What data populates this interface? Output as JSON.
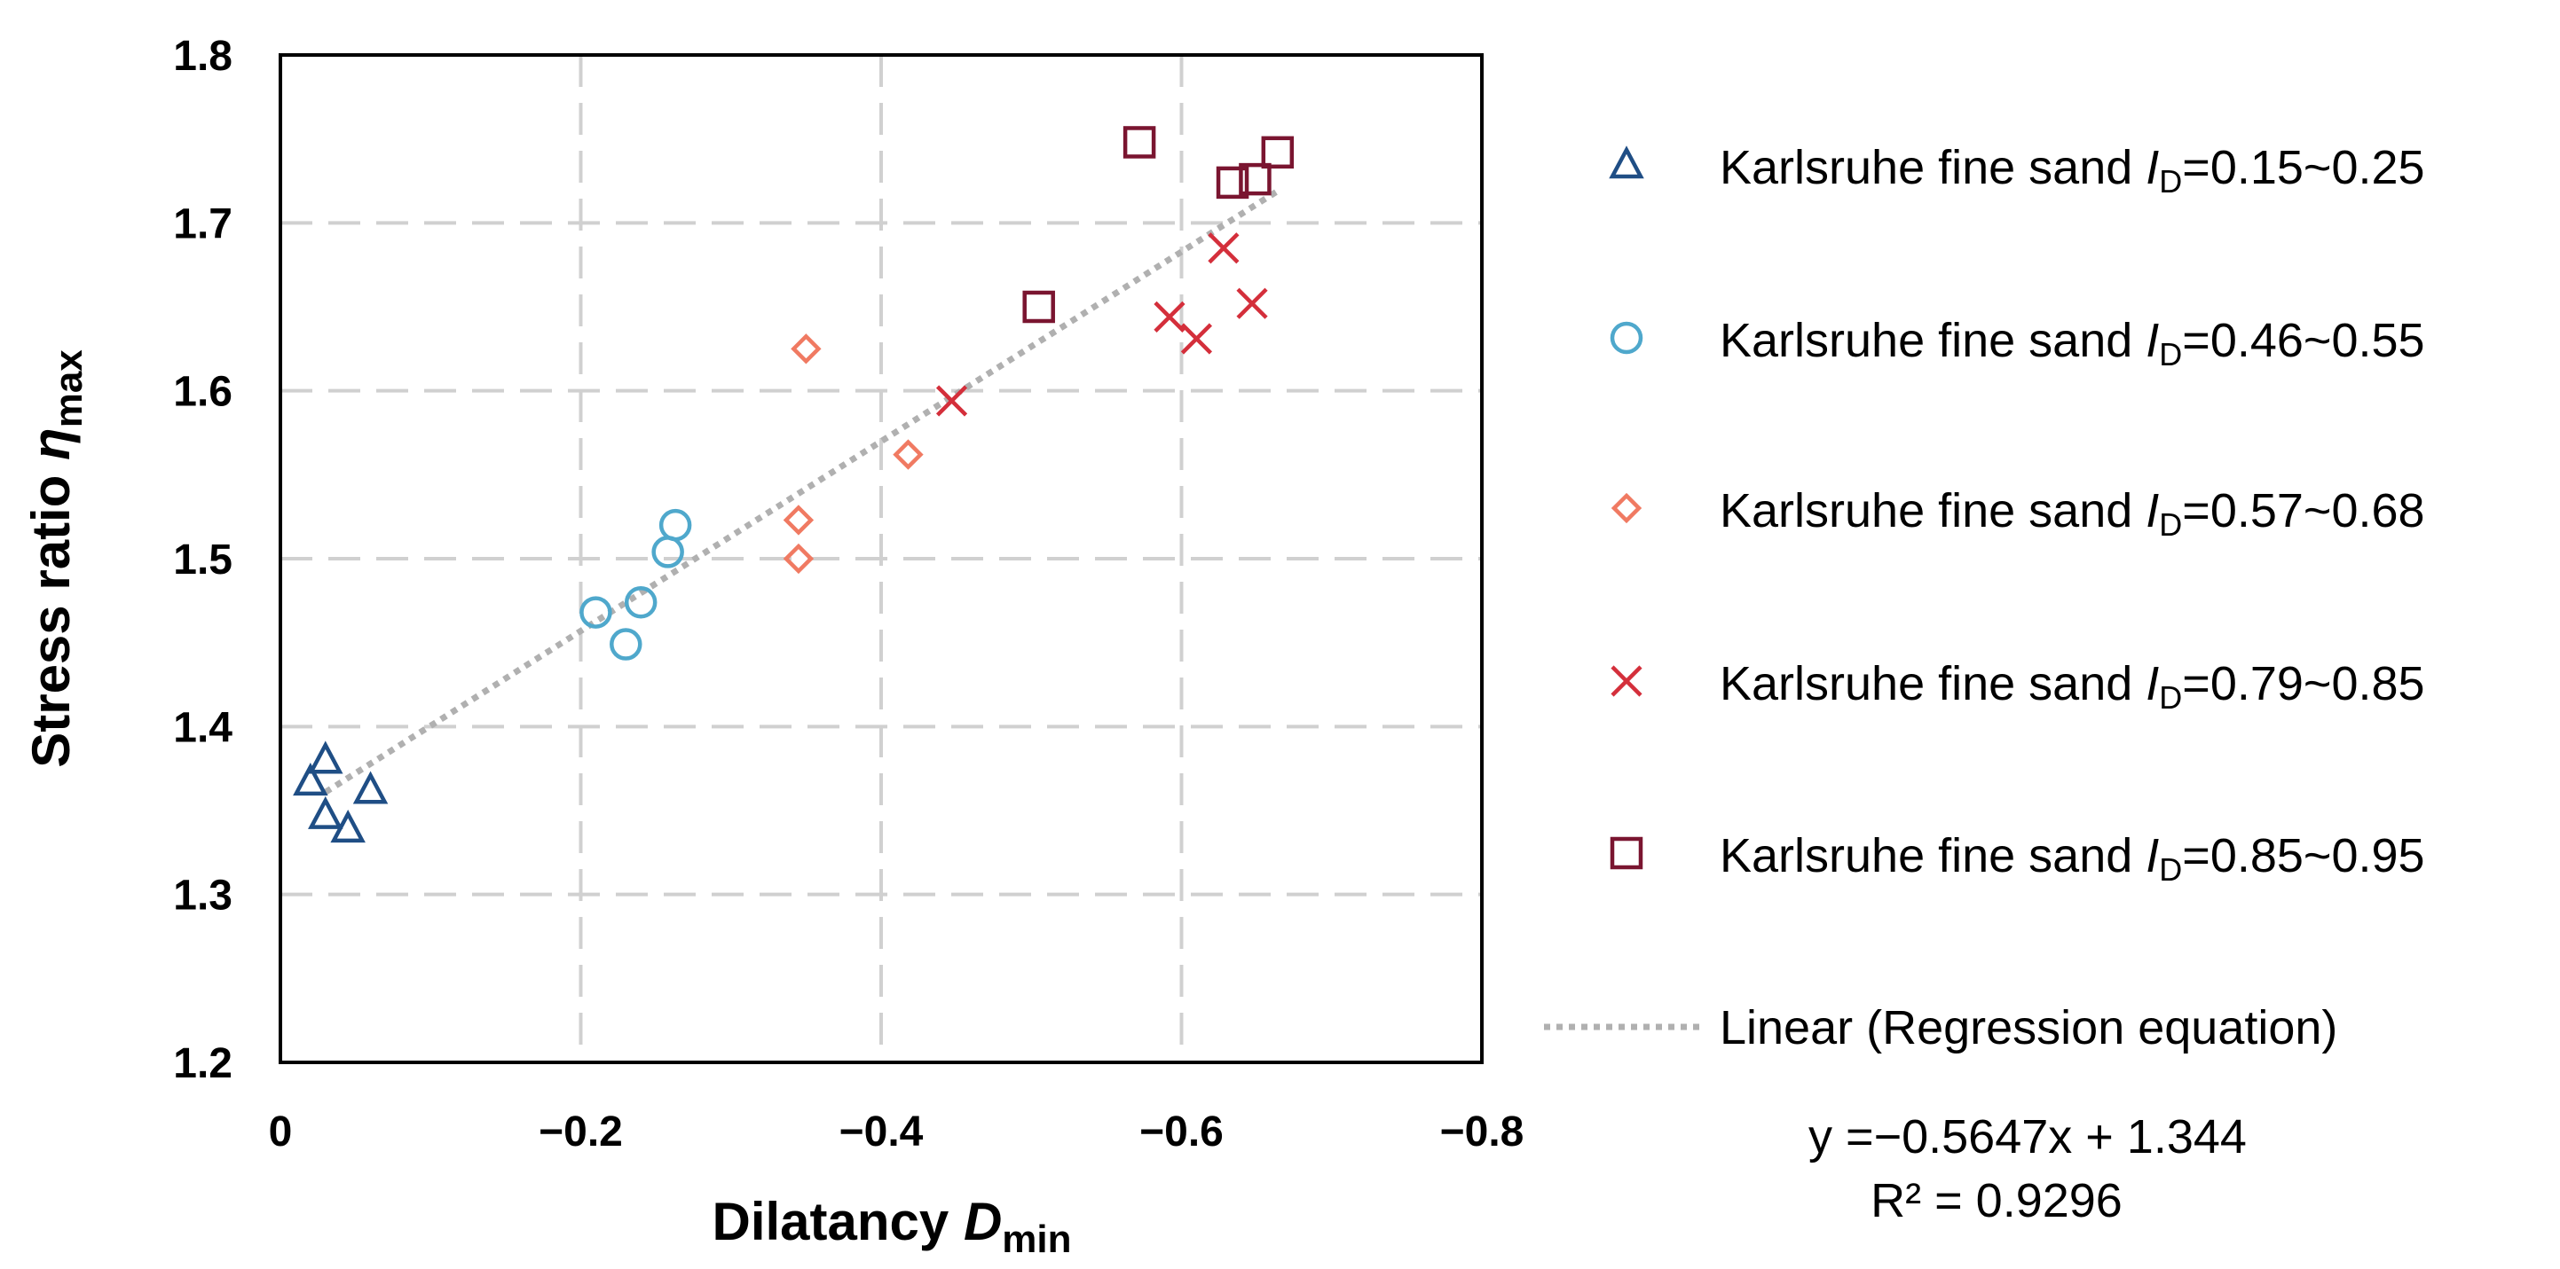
{
  "chart_data": {
    "type": "scatter",
    "title": "",
    "xlabel": {
      "main": "Dilatancy ",
      "var": "D",
      "sub": "min"
    },
    "ylabel": {
      "main": "Stress ratio ",
      "var": "η",
      "sub": "max"
    },
    "xlim": [
      0,
      -0.8
    ],
    "ylim": [
      1.2,
      1.8
    ],
    "x_ticks": [
      "0",
      "−0.2",
      "−0.4",
      "−0.6",
      "−0.8"
    ],
    "y_ticks": [
      "1.2",
      "1.3",
      "1.4",
      "1.5",
      "1.6",
      "1.7",
      "1.8"
    ],
    "grid": true,
    "legend_position": "right",
    "series": [
      {
        "name": "Karlsruhe fine sand",
        "id_label": "I",
        "id_sub": "D",
        "range": "=0.15~0.25",
        "marker": "triangle",
        "color": "#1f4e85",
        "points": [
          [
            -0.03,
            1.38
          ],
          [
            -0.02,
            1.367
          ],
          [
            -0.03,
            1.347
          ],
          [
            -0.045,
            1.339
          ],
          [
            -0.06,
            1.362
          ]
        ]
      },
      {
        "name": "Karlsruhe fine sand",
        "id_label": "I",
        "id_sub": "D",
        "range": "=0.46~0.55",
        "marker": "circle",
        "color": "#4fa8cc",
        "points": [
          [
            -0.21,
            1.468
          ],
          [
            -0.23,
            1.449
          ],
          [
            -0.24,
            1.474
          ],
          [
            -0.258,
            1.504
          ],
          [
            -0.263,
            1.52
          ]
        ]
      },
      {
        "name": "Karlsruhe fine sand",
        "id_label": "I",
        "id_sub": "D",
        "range": "=0.57~0.68",
        "marker": "diamond",
        "color": "#f07a62",
        "points": [
          [
            -0.345,
            1.523
          ],
          [
            -0.345,
            1.5
          ],
          [
            -0.35,
            1.625
          ],
          [
            -0.418,
            1.562
          ]
        ]
      },
      {
        "name": "Karlsruhe fine sand",
        "id_label": "I",
        "id_sub": "D",
        "range": "=0.79~0.85",
        "marker": "x",
        "color": "#d42f3b",
        "points": [
          [
            -0.447,
            1.594
          ],
          [
            -0.592,
            1.644
          ],
          [
            -0.61,
            1.631
          ],
          [
            -0.628,
            1.685
          ],
          [
            -0.647,
            1.652
          ]
        ]
      },
      {
        "name": "Karlsruhe fine sand",
        "id_label": "I",
        "id_sub": "D",
        "range": "=0.85~0.95",
        "marker": "square",
        "color": "#7a1530",
        "points": [
          [
            -0.505,
            1.65
          ],
          [
            -0.572,
            1.748
          ],
          [
            -0.634,
            1.724
          ],
          [
            -0.649,
            1.726
          ],
          [
            -0.664,
            1.742
          ]
        ]
      }
    ],
    "trendline": {
      "label": "Linear (Regression equation)",
      "color": "#b0b0b0",
      "slope": -0.5647,
      "intercept": 1.344,
      "x_from": -0.03,
      "x_to": -0.664
    },
    "equation": "y =−0.5647x + 1.344",
    "r_squared": "R² = 0.9296"
  }
}
